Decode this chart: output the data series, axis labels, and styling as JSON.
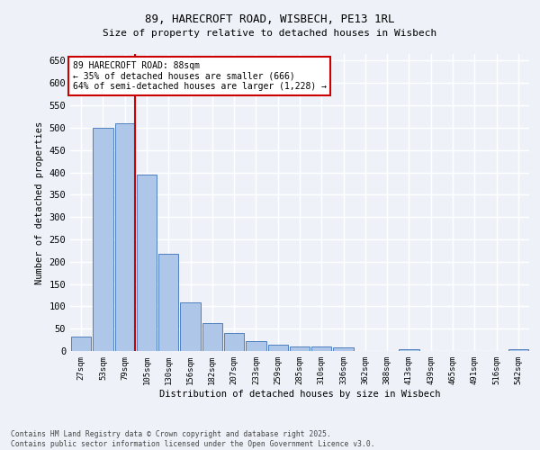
{
  "title_line1": "89, HARECROFT ROAD, WISBECH, PE13 1RL",
  "title_line2": "Size of property relative to detached houses in Wisbech",
  "xlabel": "Distribution of detached houses by size in Wisbech",
  "ylabel": "Number of detached properties",
  "categories": [
    "27sqm",
    "53sqm",
    "79sqm",
    "105sqm",
    "130sqm",
    "156sqm",
    "182sqm",
    "207sqm",
    "233sqm",
    "259sqm",
    "285sqm",
    "310sqm",
    "336sqm",
    "362sqm",
    "388sqm",
    "413sqm",
    "439sqm",
    "465sqm",
    "491sqm",
    "516sqm",
    "542sqm"
  ],
  "values": [
    33,
    500,
    510,
    395,
    217,
    109,
    62,
    40,
    22,
    15,
    11,
    10,
    9,
    0,
    0,
    5,
    0,
    1,
    0,
    0,
    4
  ],
  "bar_color": "#aec6e8",
  "bar_edge_color": "#5080c0",
  "vline_x_index": 2,
  "vline_color": "#cc0000",
  "annotation_text": "89 HARECROFT ROAD: 88sqm\n← 35% of detached houses are smaller (666)\n64% of semi-detached houses are larger (1,228) →",
  "annotation_box_color": "#ffffff",
  "annotation_box_edge_color": "#cc0000",
  "ylim": [
    0,
    665
  ],
  "yticks": [
    0,
    50,
    100,
    150,
    200,
    250,
    300,
    350,
    400,
    450,
    500,
    550,
    600,
    650
  ],
  "footer_text": "Contains HM Land Registry data © Crown copyright and database right 2025.\nContains public sector information licensed under the Open Government Licence v3.0.",
  "background_color": "#eef2f8",
  "grid_color": "#ffffff"
}
